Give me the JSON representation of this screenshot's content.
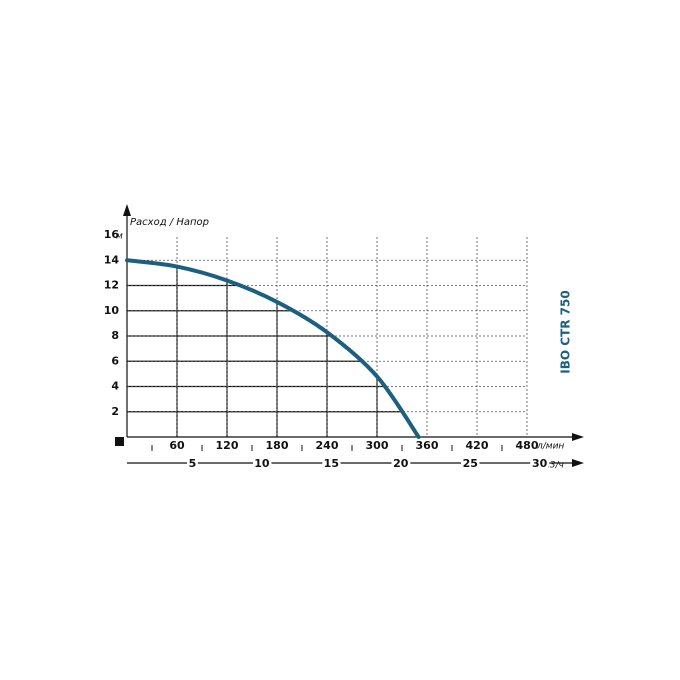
{
  "chart_data": {
    "type": "line",
    "title": "Расход / Напор",
    "side_label": "IBO CTR 750",
    "y_unit": "м",
    "x_unit": "л/мин",
    "x2_unit": "м3/ч",
    "x": [
      0,
      60,
      120,
      180,
      240,
      300,
      350
    ],
    "series": [
      {
        "name": "IBO CTR 750",
        "color": "#1d5f80",
        "values": [
          14,
          13.5,
          12.4,
          10.7,
          8.3,
          4.8,
          0
        ]
      }
    ],
    "xlim": [
      0,
      480
    ],
    "xticks": [
      60,
      120,
      180,
      240,
      300,
      360,
      420,
      480
    ],
    "x2lim": [
      0,
      28.8
    ],
    "x2ticks": [
      5,
      10,
      15,
      20,
      25,
      30
    ],
    "ylim": [
      0,
      16
    ],
    "yticks": [
      2,
      4,
      6,
      8,
      10,
      12,
      14,
      16
    ],
    "grid": true
  }
}
